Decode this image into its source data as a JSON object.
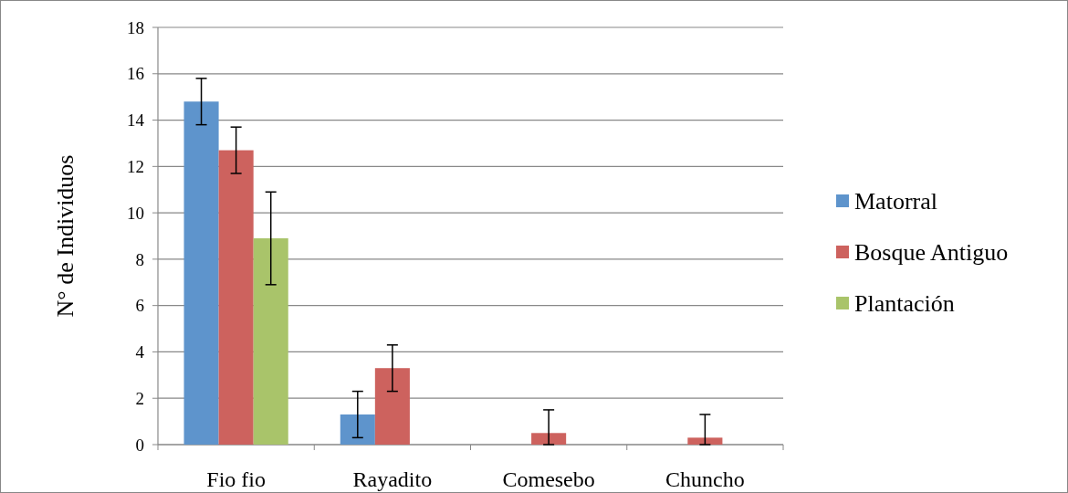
{
  "chart_data": {
    "type": "bar",
    "ylabel": "N° de Individuos",
    "categories": [
      "Fio fio",
      "Rayadito",
      "Comesebo",
      "Chuncho"
    ],
    "series": [
      {
        "name": "Matorral",
        "color": "#5e94cc",
        "values": [
          14.8,
          1.3,
          0,
          0
        ],
        "errors": [
          1,
          1,
          null,
          null
        ]
      },
      {
        "name": "Bosque Antiguo",
        "color": "#cd625e",
        "values": [
          12.7,
          3.3,
          0.5,
          0.3
        ],
        "errors": [
          1,
          1,
          [
            0,
            1.5
          ],
          [
            0,
            1.3
          ]
        ]
      },
      {
        "name": "Plantación",
        "color": "#a9c46a",
        "values": [
          8.9,
          0,
          0,
          0
        ],
        "errors": [
          2,
          null,
          null,
          null
        ]
      }
    ],
    "ylim": [
      0,
      18
    ],
    "yticks": [
      0,
      2,
      4,
      6,
      8,
      10,
      12,
      14,
      16,
      18
    ],
    "grid": "y",
    "legend": "right"
  }
}
